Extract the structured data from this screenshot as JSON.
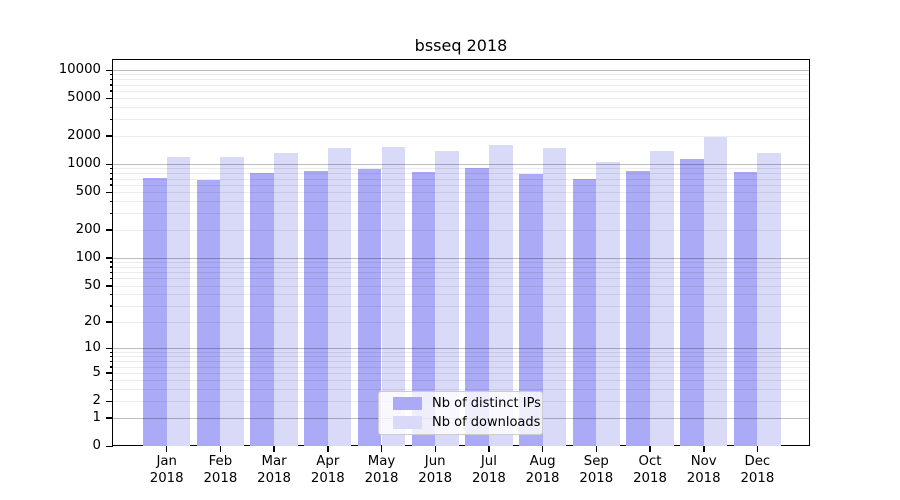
{
  "chart_data": {
    "type": "bar",
    "title": "bsseq 2018",
    "categories": [
      "Jan",
      "Feb",
      "Mar",
      "Apr",
      "May",
      "Jun",
      "Jul",
      "Aug",
      "Sep",
      "Oct",
      "Nov",
      "Dec"
    ],
    "year": "2018",
    "series": [
      {
        "name": "Nb of distinct IPs",
        "color": "#aaaaf6",
        "values": [
          705,
          675,
          810,
          850,
          880,
          825,
          900,
          790,
          700,
          850,
          1120,
          820
        ]
      },
      {
        "name": "Nb of downloads",
        "color": "#d9d9f8",
        "values": [
          1195,
          1185,
          1320,
          1470,
          1505,
          1385,
          1580,
          1490,
          1055,
          1375,
          1925,
          1320
        ]
      }
    ],
    "y_axis": {
      "scale": "log1p",
      "tick_values": [
        0,
        1,
        2,
        5,
        10,
        20,
        50,
        100,
        200,
        500,
        1000,
        2000,
        5000,
        10000
      ],
      "range_top": 12800
    },
    "x_axis": {
      "label_line2": "2018"
    },
    "legend": {
      "position": "bottom-center",
      "entries": [
        "Nb of distinct IPs",
        "Nb of downloads"
      ]
    },
    "grid": {
      "major_decades": [
        1,
        10,
        100,
        1000,
        10000
      ],
      "minor_per_decade": true
    }
  }
}
